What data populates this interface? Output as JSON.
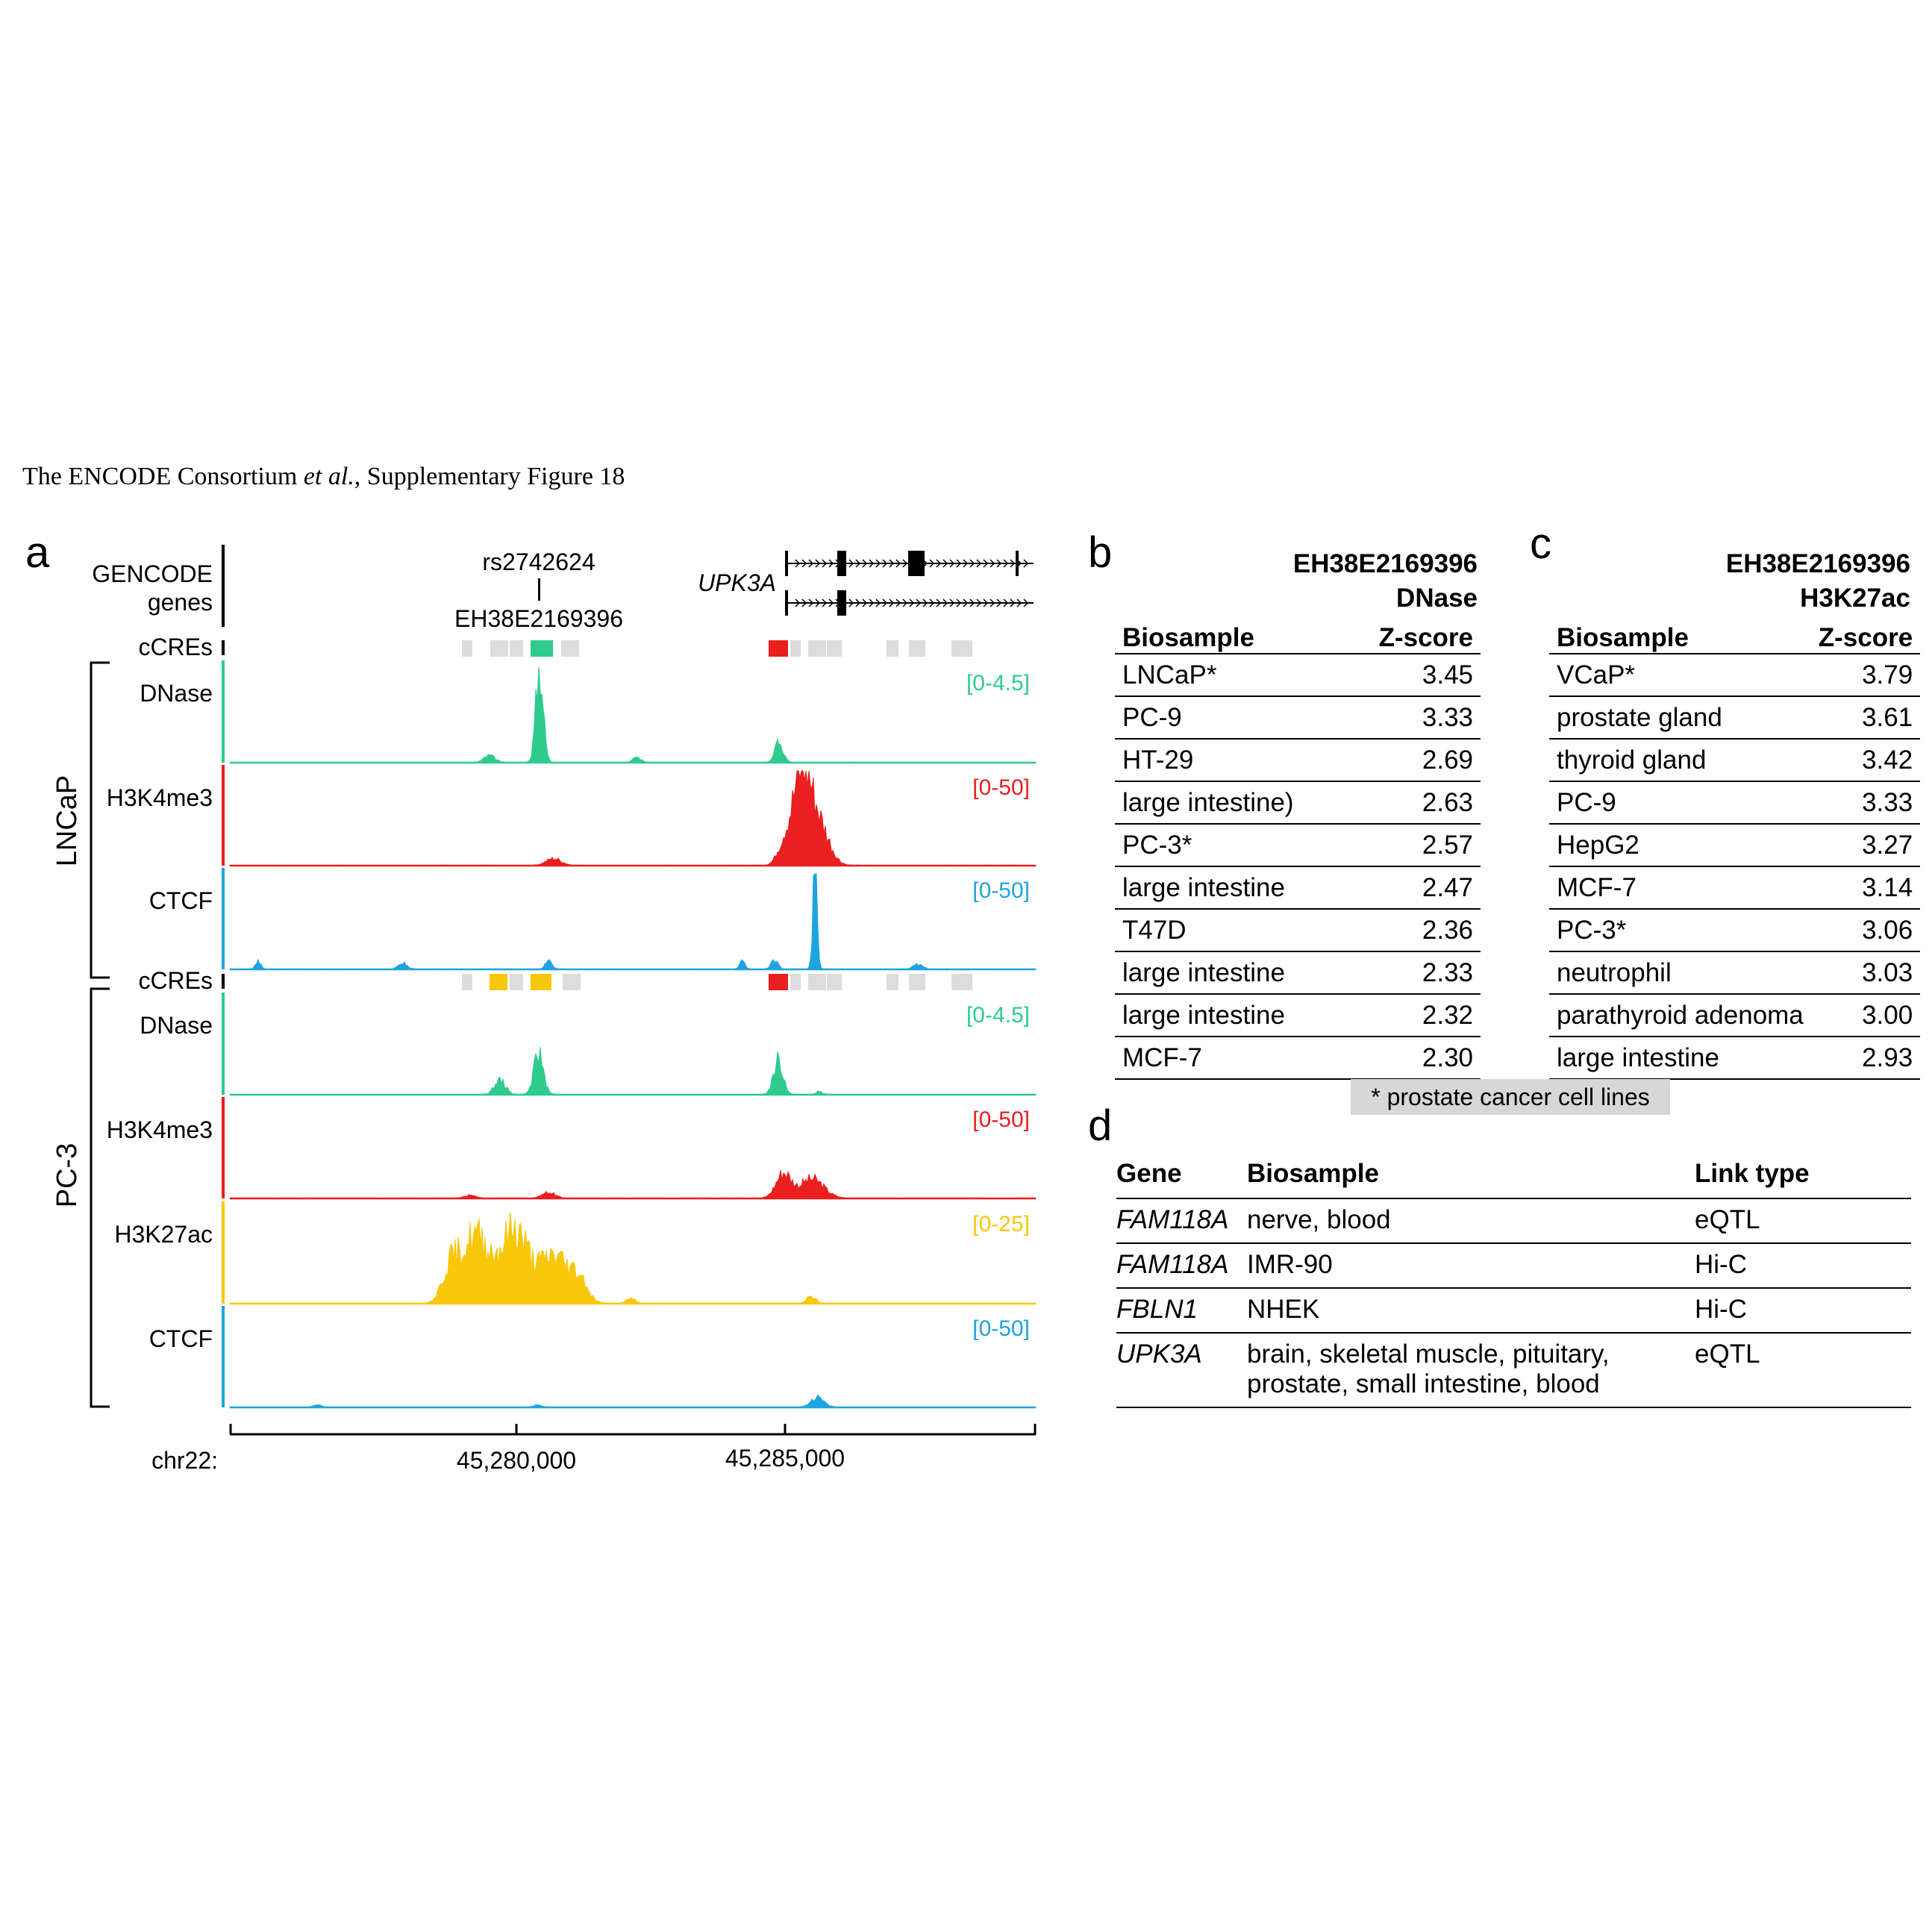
{
  "header": {
    "prefix": "The ENCODE  Consortium ",
    "etal": "et al.",
    "suffix": ", Supplementary Figure 18"
  },
  "panel_a": {
    "letter": "a",
    "gencode_label_1": "GENCODE",
    "gencode_label_2": "genes",
    "snp": "rs2742624",
    "ccre_id": "EH38E2169396",
    "gene": "UPK3A",
    "ccre_track_label": "cCREs",
    "group_lncap": "LNCaP",
    "group_pc3": "PC-3",
    "tracks_lncap": [
      {
        "label": "DNase",
        "range": "[0-4.5]",
        "color": "#2ecc8c"
      },
      {
        "label": "H3K4me3",
        "range": "[0-50]",
        "color": "#ea1f1f"
      },
      {
        "label": "CTCF",
        "range": "[0-50]",
        "color": "#1fa3e0"
      }
    ],
    "tracks_pc3": [
      {
        "label": "DNase",
        "range": "[0-4.5]",
        "color": "#2ecc8c"
      },
      {
        "label": "H3K4me3",
        "range": "[0-50]",
        "color": "#ea1f1f"
      },
      {
        "label": "H3K27ac",
        "range": "[0-25]",
        "color": "#f8c70a"
      },
      {
        "label": "CTCF",
        "range": "[0-50]",
        "color": "#1fa3e0"
      }
    ],
    "axis": {
      "chrom": "chr22:",
      "ticks": [
        "45,280,000",
        "45,285,000"
      ]
    }
  },
  "panel_b": {
    "letter": "b",
    "title_1": "EH38E2169396",
    "title_2": "DNase",
    "col_biosample": "Biosample",
    "col_score": "Z-score",
    "rows": [
      {
        "biosample": "LNCaP*",
        "score": "3.45"
      },
      {
        "biosample": "PC-9",
        "score": "3.33"
      },
      {
        "biosample": "HT-29",
        "score": "2.69"
      },
      {
        "biosample": "large intestine)",
        "score": "2.63"
      },
      {
        "biosample": "PC-3*",
        "score": "2.57"
      },
      {
        "biosample": "large intestine",
        "score": "2.47"
      },
      {
        "biosample": "T47D",
        "score": "2.36"
      },
      {
        "biosample": "large intestine",
        "score": "2.33"
      },
      {
        "biosample": "large intestine",
        "score": "2.32"
      },
      {
        "biosample": "MCF-7",
        "score": "2.30"
      }
    ]
  },
  "panel_c": {
    "letter": "c",
    "title_1": "EH38E2169396",
    "title_2": "H3K27ac",
    "col_biosample": "Biosample",
    "col_score": "Z-score",
    "rows": [
      {
        "biosample": "VCaP*",
        "score": "3.79"
      },
      {
        "biosample": "prostate gland",
        "score": "3.61"
      },
      {
        "biosample": "thyroid gland",
        "score": "3.42"
      },
      {
        "biosample": "PC-9",
        "score": "3.33"
      },
      {
        "biosample": "HepG2",
        "score": "3.27"
      },
      {
        "biosample": "MCF-7",
        "score": "3.14"
      },
      {
        "biosample": "PC-3*",
        "score": "3.06"
      },
      {
        "biosample": "neutrophil",
        "score": "3.03"
      },
      {
        "biosample": "parathyroid adenoma",
        "score": "3.00"
      },
      {
        "biosample": "large intestine",
        "score": "2.93"
      }
    ]
  },
  "footnote": "* prostate cancer cell lines",
  "panel_d": {
    "letter": "d",
    "col_gene": "Gene",
    "col_biosample": "Biosample",
    "col_link": "Link type",
    "rows": [
      {
        "gene": "FAM118A",
        "biosample": "nerve, blood",
        "link": "eQTL"
      },
      {
        "gene": "FAM118A",
        "biosample": "IMR-90",
        "link": "Hi-C"
      },
      {
        "gene": "FBLN1",
        "biosample": "NHEK",
        "link": "Hi-C"
      },
      {
        "gene": "UPK3A",
        "biosample": "brain, skeletal muscle, pituitary, prostate, small intestine, blood",
        "link": "eQTL"
      }
    ]
  }
}
